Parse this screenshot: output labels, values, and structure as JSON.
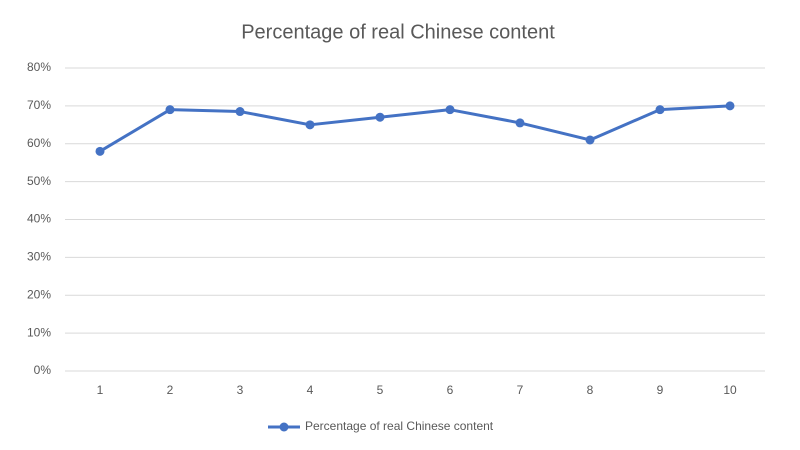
{
  "chart_data": {
    "type": "line",
    "title": "Percentage of real Chinese content",
    "categories": [
      "1",
      "2",
      "3",
      "4",
      "5",
      "6",
      "7",
      "8",
      "9",
      "10"
    ],
    "series": [
      {
        "name": "Percentage of real Chinese content",
        "color": "#4472c4",
        "values": [
          58,
          69,
          68.5,
          65,
          67,
          69,
          65.5,
          61,
          69,
          70
        ]
      }
    ],
    "ylim": [
      0,
      80
    ],
    "yticks": [
      {
        "value": 0,
        "label": "0%"
      },
      {
        "value": 10,
        "label": "10%"
      },
      {
        "value": 20,
        "label": "20%"
      },
      {
        "value": 30,
        "label": "30%"
      },
      {
        "value": 40,
        "label": "40%"
      },
      {
        "value": 50,
        "label": "50%"
      },
      {
        "value": 60,
        "label": "60%"
      },
      {
        "value": 70,
        "label": "70%"
      },
      {
        "value": 80,
        "label": "80%"
      }
    ],
    "grid": true,
    "legend": "bottom"
  }
}
